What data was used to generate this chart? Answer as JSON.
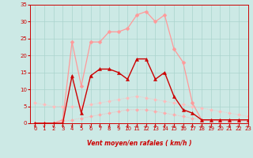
{
  "xlabel": "Vent moyen/en rafales ( km/h )",
  "xlim": [
    -0.5,
    23
  ],
  "ylim": [
    0,
    35
  ],
  "yticks": [
    0,
    5,
    10,
    15,
    20,
    25,
    30,
    35
  ],
  "xticks": [
    0,
    1,
    2,
    3,
    4,
    5,
    6,
    7,
    8,
    9,
    10,
    11,
    12,
    13,
    14,
    15,
    16,
    17,
    18,
    19,
    20,
    21,
    22,
    23
  ],
  "bg_color": "#cce9e5",
  "grid_color": "#aad4ce",
  "line_diagonal1_x": [
    0,
    1,
    2,
    3,
    4,
    5,
    6,
    7,
    8,
    9,
    10,
    11,
    12,
    13,
    14,
    15,
    16,
    17,
    18,
    19,
    20,
    21,
    22,
    23
  ],
  "line_diagonal1_y": [
    0,
    0,
    0,
    0.5,
    1,
    1.5,
    2,
    2.5,
    3,
    3.5,
    4,
    4,
    4,
    3.5,
    3,
    2.5,
    2,
    1.5,
    1,
    1,
    0.5,
    0.5,
    0.5,
    0.5
  ],
  "line_diagonal1_color": "#ffaaaa",
  "line_diagonal2_x": [
    0,
    1,
    2,
    3,
    4,
    5,
    6,
    7,
    8,
    9,
    10,
    11,
    12,
    13,
    14,
    15,
    16,
    17,
    18,
    19,
    20,
    21,
    22,
    23
  ],
  "line_diagonal2_y": [
    6,
    5.5,
    5,
    5,
    5,
    5,
    5.5,
    6,
    6.5,
    7,
    7.5,
    8,
    7.5,
    7,
    6.5,
    6,
    5.5,
    5,
    4.5,
    4,
    3.5,
    3,
    2.5,
    2
  ],
  "line_diagonal2_color": "#ffbbbb",
  "line_rafales_x": [
    0,
    1,
    2,
    3,
    4,
    5,
    6,
    7,
    8,
    9,
    10,
    11,
    12,
    13,
    14,
    15,
    16,
    17,
    18,
    19,
    20,
    21,
    22,
    23
  ],
  "line_rafales_y": [
    0,
    0,
    0,
    1,
    24,
    11,
    24,
    24,
    27,
    27,
    28,
    32,
    33,
    30,
    32,
    22,
    18,
    6,
    1,
    1,
    1,
    1,
    1,
    1
  ],
  "line_rafales_color": "#ff9999",
  "line_moyen_x": [
    0,
    1,
    2,
    3,
    4,
    5,
    6,
    7,
    8,
    9,
    10,
    11,
    12,
    13,
    14,
    15,
    16,
    17,
    18,
    19,
    20,
    21,
    22,
    23
  ],
  "line_moyen_y": [
    0,
    0,
    0,
    0,
    14,
    3,
    14,
    16,
    16,
    15,
    13,
    19,
    19,
    13,
    15,
    8,
    4,
    3,
    1,
    1,
    1,
    1,
    1,
    1
  ],
  "line_moyen_color": "#cc0000",
  "marker_size": 2.5
}
